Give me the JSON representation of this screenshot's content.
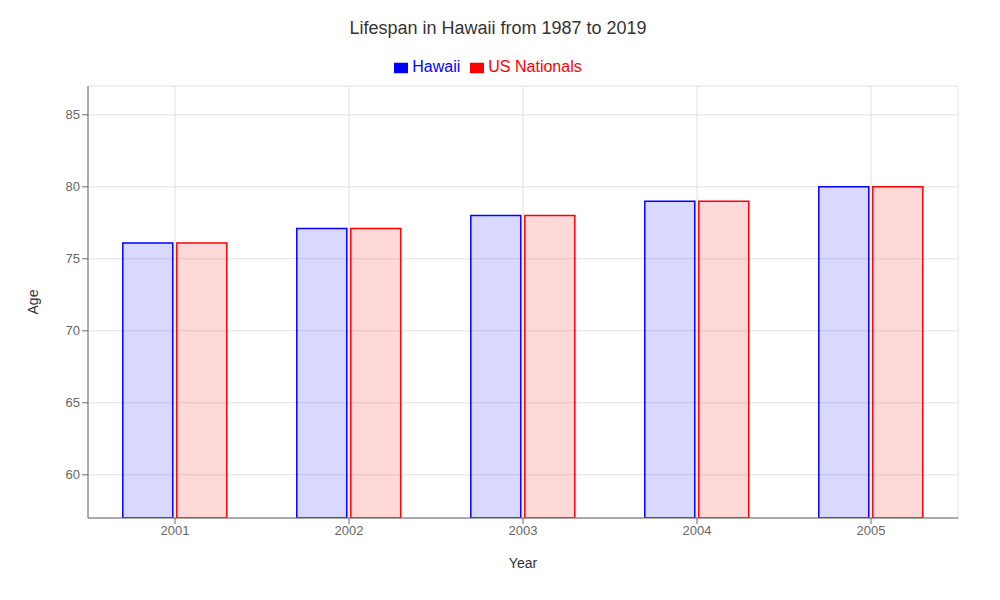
{
  "chart_data": {
    "type": "bar",
    "title": "Lifespan in Hawaii from 1987 to 2019",
    "xlabel": "Year",
    "ylabel": "Age",
    "categories": [
      "2001",
      "2002",
      "2003",
      "2004",
      "2005"
    ],
    "series": [
      {
        "name": "Hawaii",
        "color": "#0000ff",
        "values": [
          76.1,
          77.1,
          78.0,
          79.0,
          80.0
        ]
      },
      {
        "name": "US Nationals",
        "color": "#ff0000",
        "values": [
          76.1,
          77.1,
          78.0,
          79.0,
          80.0
        ]
      }
    ],
    "ylim": [
      57,
      87
    ],
    "yticks": [
      60,
      65,
      70,
      75,
      80,
      85
    ],
    "grid": true,
    "legend": "top"
  }
}
